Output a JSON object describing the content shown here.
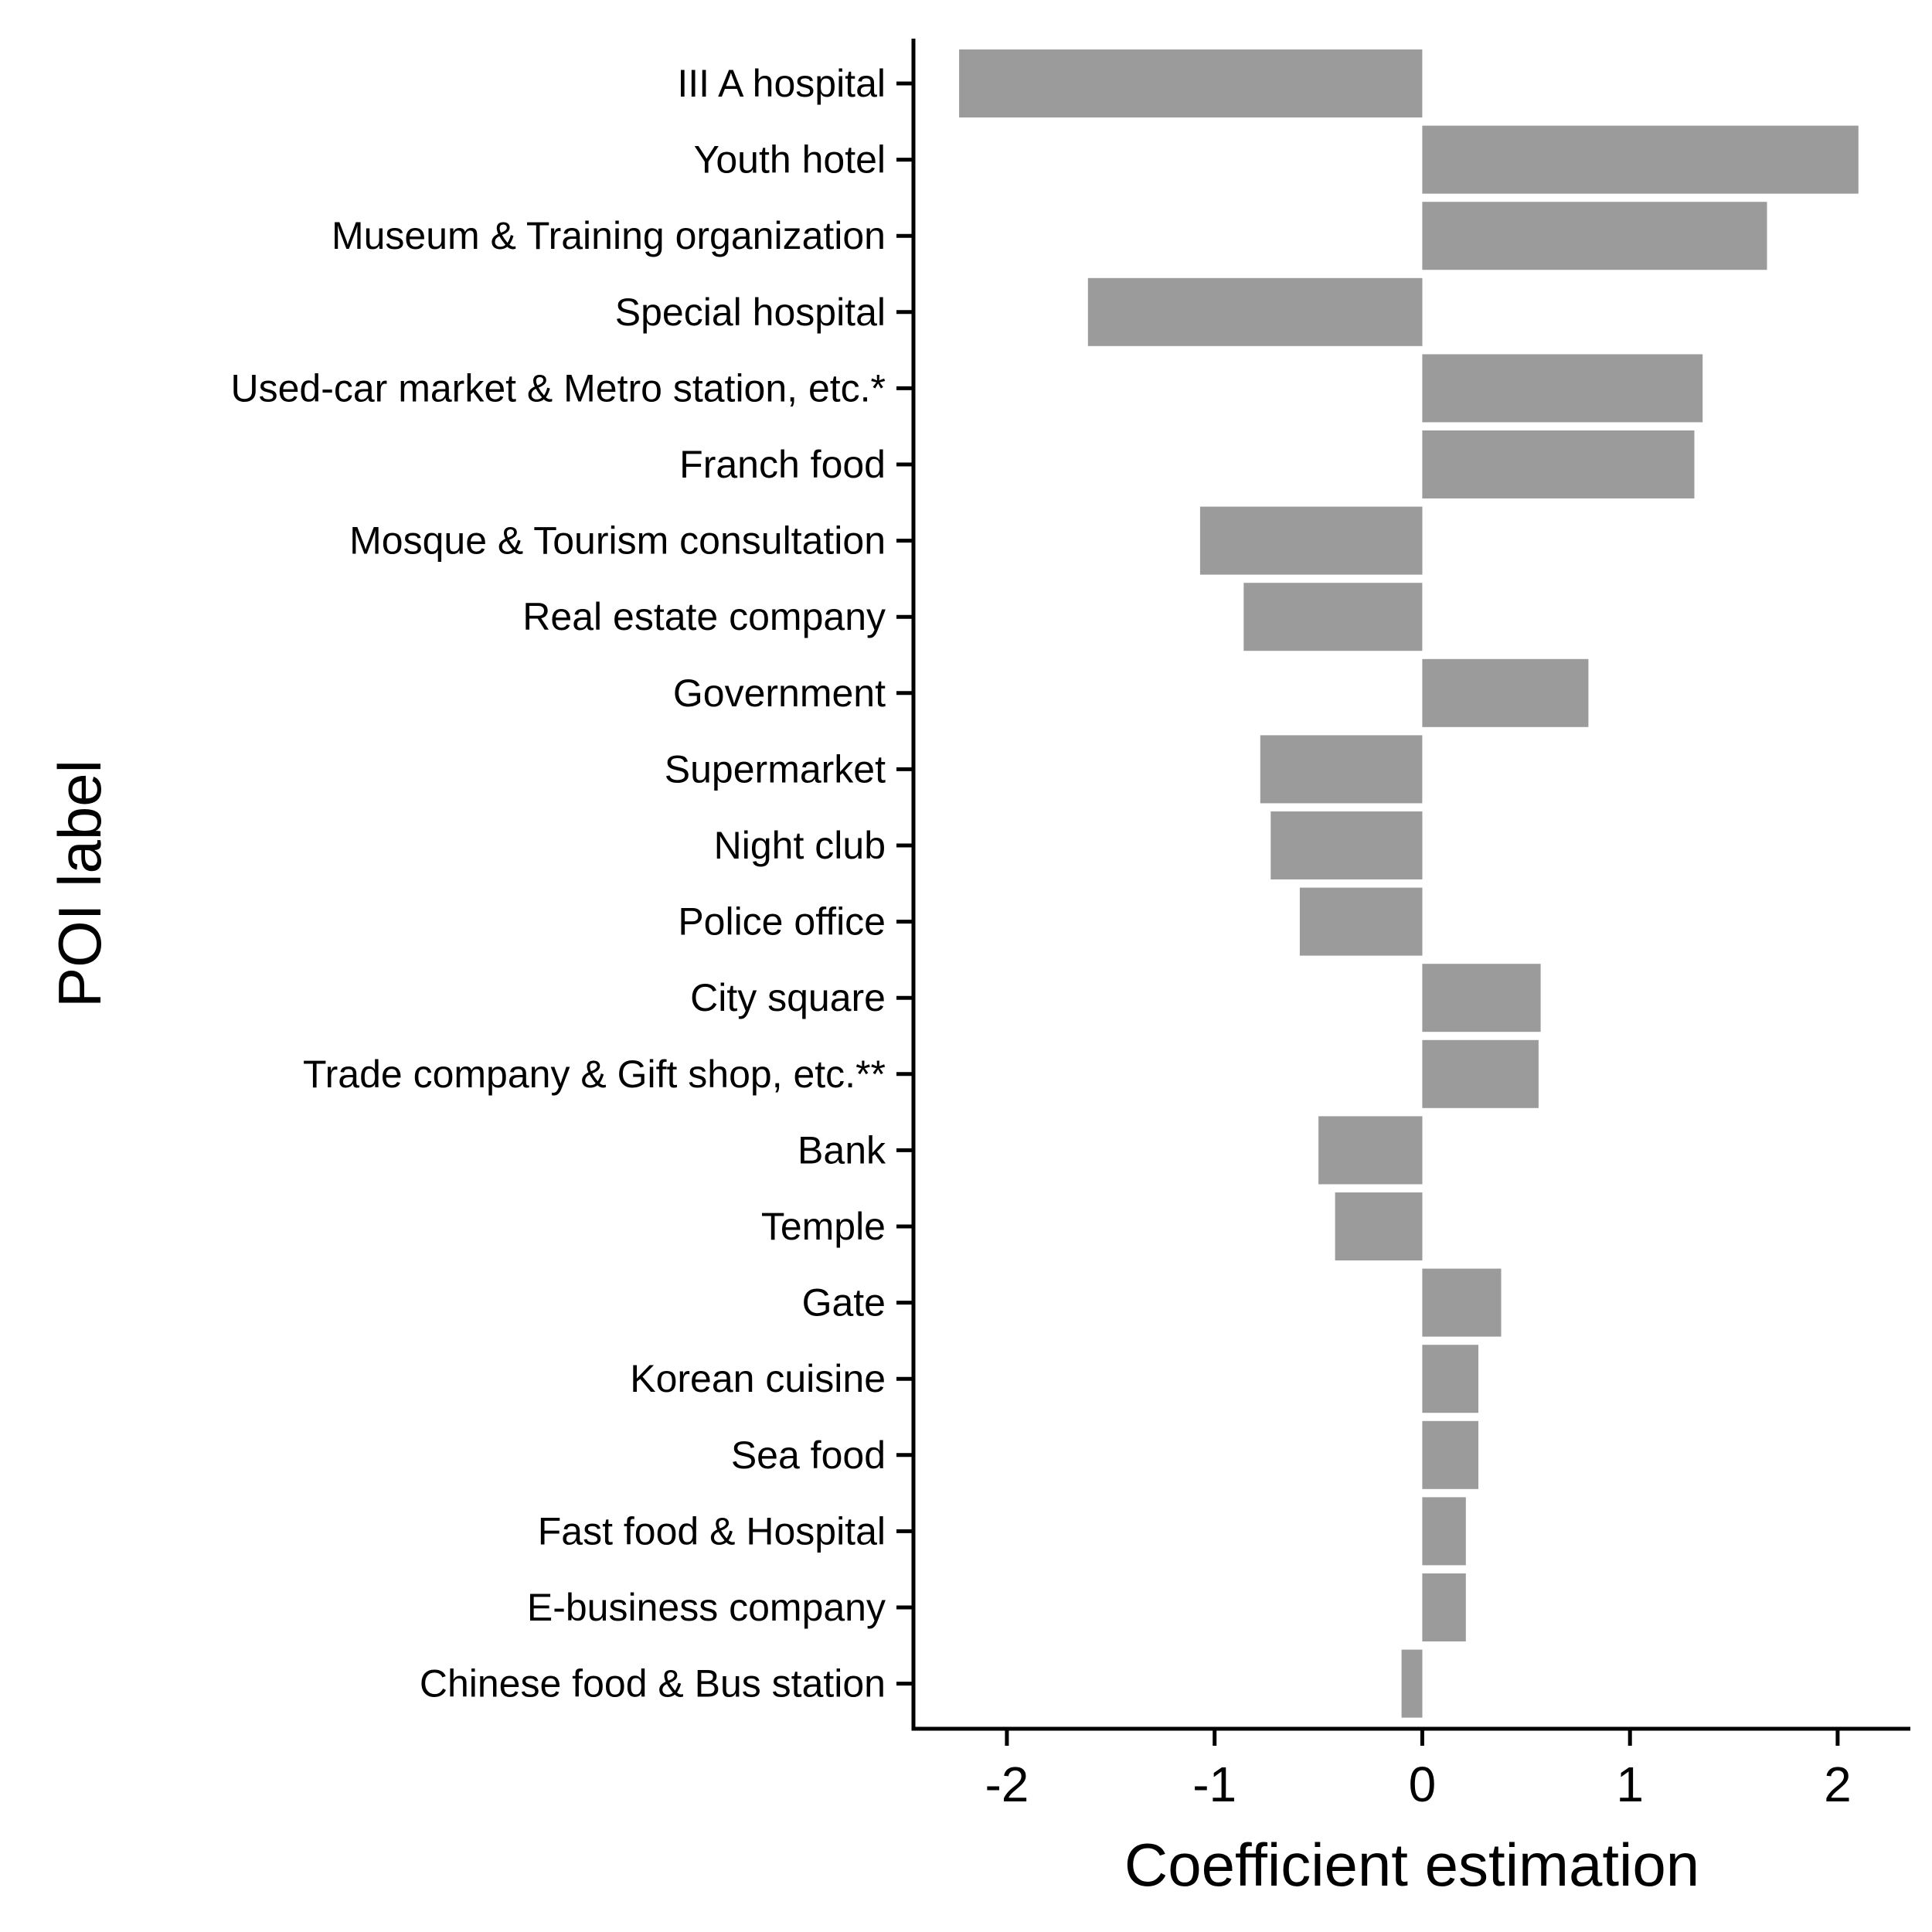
{
  "chart_data": {
    "type": "bar",
    "orientation": "horizontal",
    "xlabel": "Coefficient estimation",
    "ylabel": "POI label",
    "xlim": [
      -2.45,
      2.35
    ],
    "xticks": [
      -2,
      -1,
      0,
      1,
      2
    ],
    "grid": false,
    "bar_color": "#9b9b9b",
    "categories": [
      "III A hospital",
      "Youth hotel",
      "Museum & Training organization",
      "Special hospital",
      "Used-car market & Metro station, etc.*",
      "Franch food",
      "Mosque & Tourism consultation",
      "Real estate company",
      "Government",
      "Supermarket",
      "Night club",
      "Police office",
      "City square",
      "Trade company & Gift shop, etc.**",
      "Bank",
      "Temple",
      "Gate",
      "Korean cuisine",
      "Sea food",
      "Fast food & Hospital",
      "E-business company",
      "Chinese food & Bus station"
    ],
    "values": [
      -2.23,
      2.1,
      1.66,
      -1.61,
      1.35,
      1.31,
      -1.07,
      -0.86,
      0.8,
      -0.78,
      -0.73,
      -0.59,
      0.57,
      0.56,
      -0.5,
      -0.42,
      0.38,
      0.27,
      0.27,
      0.21,
      0.21,
      -0.1
    ]
  }
}
